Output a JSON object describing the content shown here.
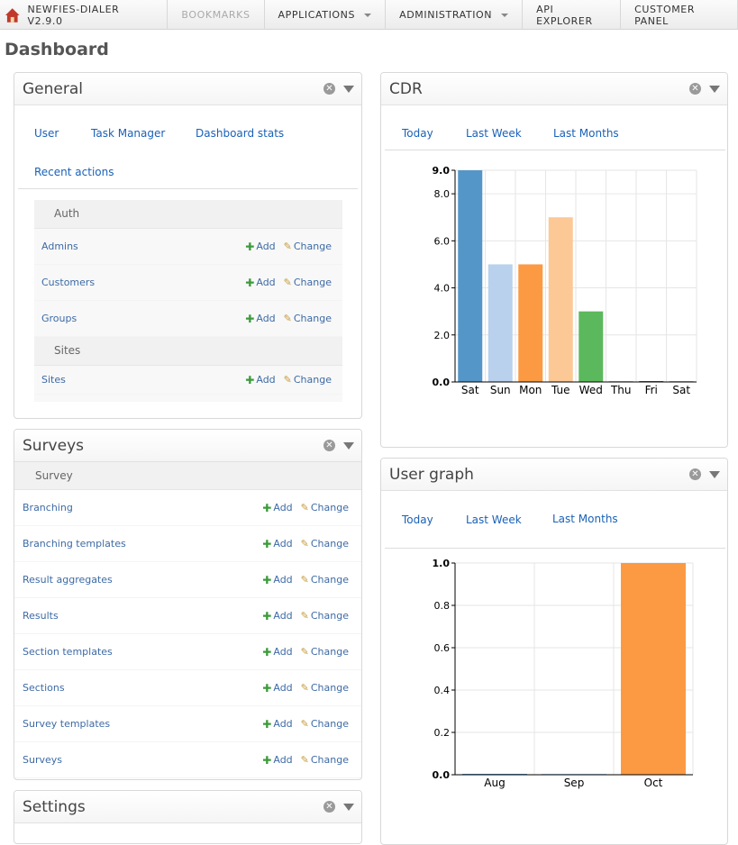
{
  "nav": {
    "brand": "NEWFIES-DIALER V2.9.0",
    "items": [
      {
        "label": "BOOKMARKS",
        "disabled": true,
        "dropdown": false
      },
      {
        "label": "APPLICATIONS",
        "disabled": false,
        "dropdown": true
      },
      {
        "label": "ADMINISTRATION",
        "disabled": false,
        "dropdown": true
      },
      {
        "label": "API EXPLORER",
        "disabled": false,
        "dropdown": false
      },
      {
        "label": "CUSTOMER PANEL",
        "disabled": false,
        "dropdown": false
      }
    ]
  },
  "page_title": "Dashboard",
  "general": {
    "title": "General",
    "tabs": [
      "User",
      "Task Manager",
      "Dashboard stats",
      "Recent actions"
    ],
    "modules": [
      {
        "name": "Auth",
        "rows": [
          "Admins",
          "Customers",
          "Groups"
        ]
      },
      {
        "name": "Sites",
        "rows": [
          "Sites"
        ]
      }
    ]
  },
  "actions": {
    "add": "Add",
    "change": "Change"
  },
  "surveys": {
    "title": "Surveys",
    "module": "Survey",
    "rows": [
      "Branching",
      "Branching templates",
      "Result aggregates",
      "Results",
      "Section templates",
      "Sections",
      "Survey templates",
      "Surveys"
    ]
  },
  "settings": {
    "title": "Settings"
  },
  "cdr": {
    "title": "CDR",
    "tabs": [
      "Today",
      "Last Week",
      "Last Months"
    ]
  },
  "user_graph": {
    "title": "User graph",
    "tabs": [
      "Today",
      "Last Week",
      "Last Months"
    ]
  },
  "chart_data": [
    {
      "type": "bar",
      "panel": "CDR",
      "categories": [
        "Sat",
        "Sun",
        "Mon",
        "Tue",
        "Wed",
        "Thu",
        "Fri",
        "Sat"
      ],
      "values": [
        9,
        5,
        5,
        7,
        3,
        0,
        0,
        0
      ],
      "colors": [
        "#5596c8",
        "#b9d1ec",
        "#fb9a42",
        "#fbc896",
        "#5cb85c",
        "#98df8a",
        "#d62728",
        "#ff9896"
      ],
      "ylim": [
        0,
        9
      ],
      "yticks": [
        "0.0",
        "2.0",
        "4.0",
        "6.0",
        "8.0",
        "9.0"
      ],
      "grid": true
    },
    {
      "type": "bar",
      "panel": "User graph",
      "categories": [
        "Aug",
        "Sep",
        "Oct"
      ],
      "values": [
        0,
        0,
        1
      ],
      "colors": [
        "#5596c8",
        "#b9d1ec",
        "#fb9a42"
      ],
      "ylim": [
        0,
        1
      ],
      "yticks": [
        "0.0",
        "0.2",
        "0.4",
        "0.6",
        "0.8",
        "1.0"
      ],
      "grid": true
    }
  ]
}
